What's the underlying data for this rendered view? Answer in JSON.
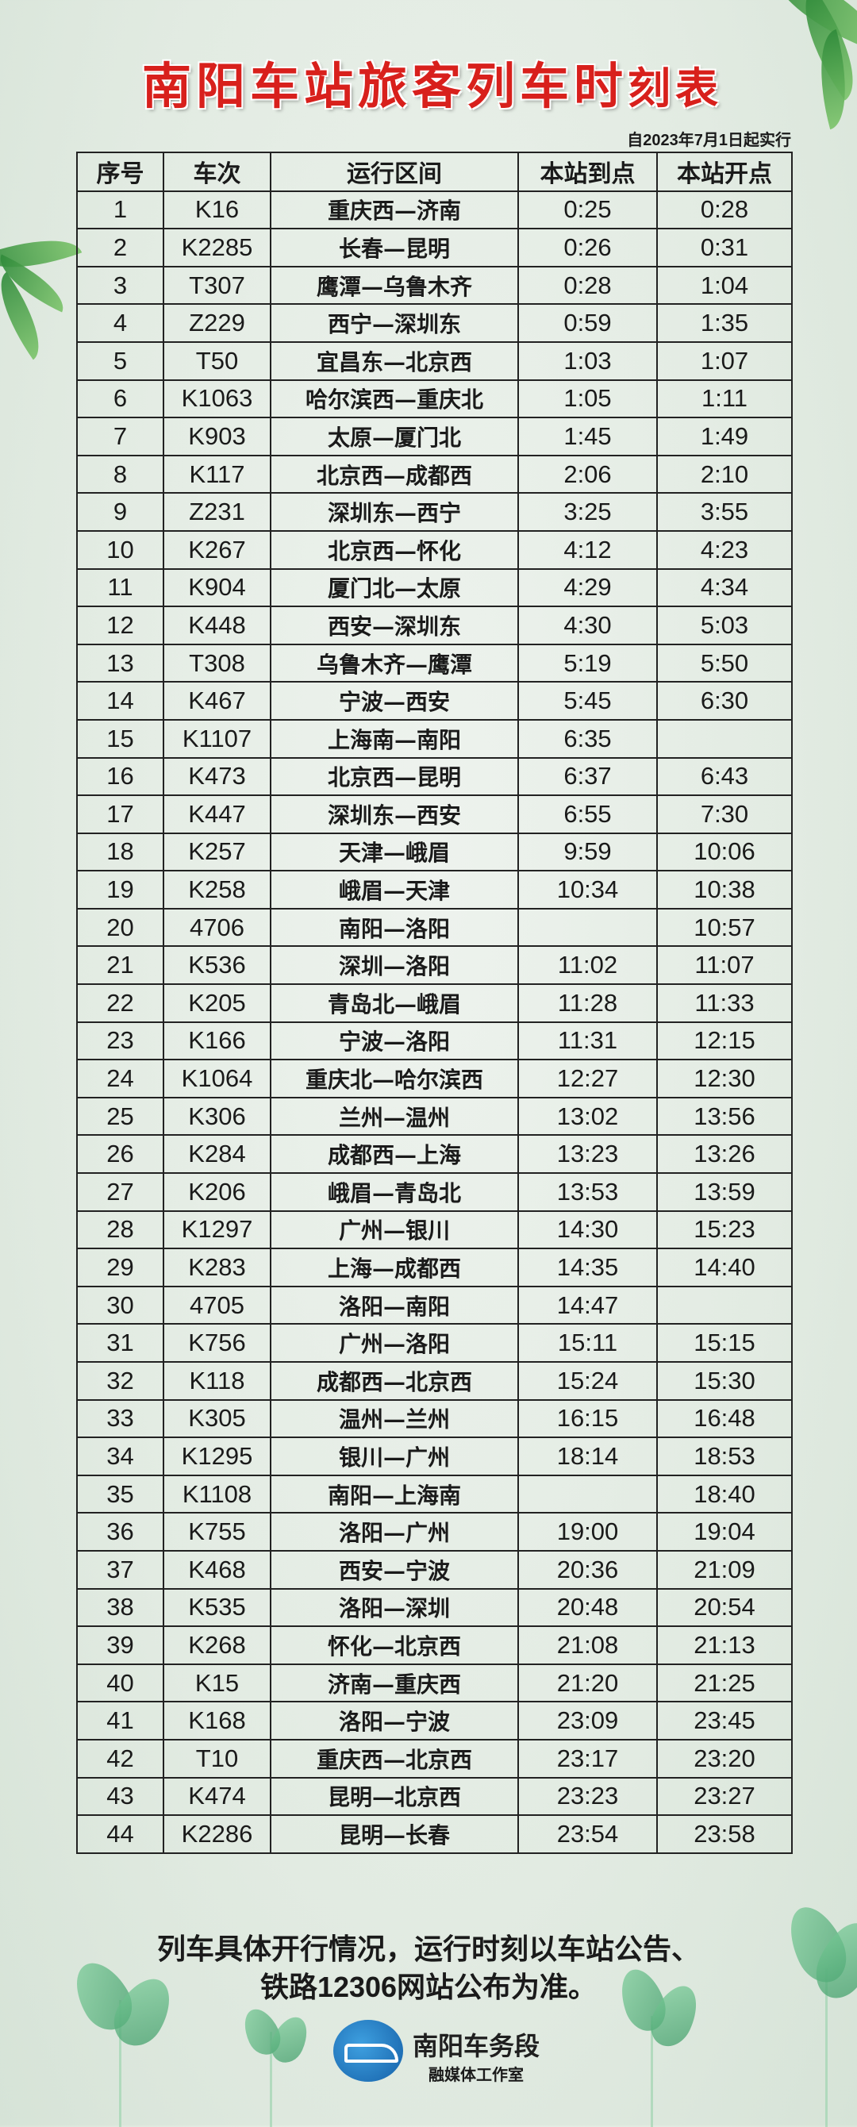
{
  "title_main": "南阳车站旅客列车时",
  "title_tail": "刻表",
  "effective_date": "自2023年7月1日起实行",
  "table": {
    "headers": [
      "序号",
      "车次",
      "运行区间",
      "本站到点",
      "本站开点"
    ],
    "rows": [
      [
        "1",
        "K16",
        "重庆西—济南",
        "0:25",
        "0:28"
      ],
      [
        "2",
        "K2285",
        "长春—昆明",
        "0:26",
        "0:31"
      ],
      [
        "3",
        "T307",
        "鹰潭—乌鲁木齐",
        "0:28",
        "1:04"
      ],
      [
        "4",
        "Z229",
        "西宁—深圳东",
        "0:59",
        "1:35"
      ],
      [
        "5",
        "T50",
        "宜昌东—北京西",
        "1:03",
        "1:07"
      ],
      [
        "6",
        "K1063",
        "哈尔滨西—重庆北",
        "1:05",
        "1:11"
      ],
      [
        "7",
        "K903",
        "太原—厦门北",
        "1:45",
        "1:49"
      ],
      [
        "8",
        "K117",
        "北京西—成都西",
        "2:06",
        "2:10"
      ],
      [
        "9",
        "Z231",
        "深圳东—西宁",
        "3:25",
        "3:55"
      ],
      [
        "10",
        "K267",
        "北京西—怀化",
        "4:12",
        "4:23"
      ],
      [
        "11",
        "K904",
        "厦门北—太原",
        "4:29",
        "4:34"
      ],
      [
        "12",
        "K448",
        "西安—深圳东",
        "4:30",
        "5:03"
      ],
      [
        "13",
        "T308",
        "乌鲁木齐—鹰潭",
        "5:19",
        "5:50"
      ],
      [
        "14",
        "K467",
        "宁波—西安",
        "5:45",
        "6:30"
      ],
      [
        "15",
        "K1107",
        "上海南—南阳",
        "6:35",
        ""
      ],
      [
        "16",
        "K473",
        "北京西—昆明",
        "6:37",
        "6:43"
      ],
      [
        "17",
        "K447",
        "深圳东—西安",
        "6:55",
        "7:30"
      ],
      [
        "18",
        "K257",
        "天津—峨眉",
        "9:59",
        "10:06"
      ],
      [
        "19",
        "K258",
        "峨眉—天津",
        "10:34",
        "10:38"
      ],
      [
        "20",
        "4706",
        "南阳—洛阳",
        "",
        "10:57"
      ],
      [
        "21",
        "K536",
        "深圳—洛阳",
        "11:02",
        "11:07"
      ],
      [
        "22",
        "K205",
        "青岛北—峨眉",
        "11:28",
        "11:33"
      ],
      [
        "23",
        "K166",
        "宁波—洛阳",
        "11:31",
        "12:15"
      ],
      [
        "24",
        "K1064",
        "重庆北—哈尔滨西",
        "12:27",
        "12:30"
      ],
      [
        "25",
        "K306",
        "兰州—温州",
        "13:02",
        "13:56"
      ],
      [
        "26",
        "K284",
        "成都西—上海",
        "13:23",
        "13:26"
      ],
      [
        "27",
        "K206",
        "峨眉—青岛北",
        "13:53",
        "13:59"
      ],
      [
        "28",
        "K1297",
        "广州—银川",
        "14:30",
        "15:23"
      ],
      [
        "29",
        "K283",
        "上海—成都西",
        "14:35",
        "14:40"
      ],
      [
        "30",
        "4705",
        "洛阳—南阳",
        "14:47",
        ""
      ],
      [
        "31",
        "K756",
        "广州—洛阳",
        "15:11",
        "15:15"
      ],
      [
        "32",
        "K118",
        "成都西—北京西",
        "15:24",
        "15:30"
      ],
      [
        "33",
        "K305",
        "温州—兰州",
        "16:15",
        "16:48"
      ],
      [
        "34",
        "K1295",
        "银川—广州",
        "18:14",
        "18:53"
      ],
      [
        "35",
        "K1108",
        "南阳—上海南",
        "",
        "18:40"
      ],
      [
        "36",
        "K755",
        "洛阳—广州",
        "19:00",
        "19:04"
      ],
      [
        "37",
        "K468",
        "西安—宁波",
        "20:36",
        "21:09"
      ],
      [
        "38",
        "K535",
        "洛阳—深圳",
        "20:48",
        "20:54"
      ],
      [
        "39",
        "K268",
        "怀化—北京西",
        "21:08",
        "21:13"
      ],
      [
        "40",
        "K15",
        "济南—重庆西",
        "21:20",
        "21:25"
      ],
      [
        "41",
        "K168",
        "洛阳—宁波",
        "23:09",
        "23:45"
      ],
      [
        "42",
        "T10",
        "重庆西—北京西",
        "23:17",
        "23:20"
      ],
      [
        "43",
        "K474",
        "昆明—北京西",
        "23:23",
        "23:27"
      ],
      [
        "44",
        "K2286",
        "昆明—长春",
        "23:54",
        "23:58"
      ]
    ]
  },
  "notice": {
    "line1": "列车具体开行情况，运行时刻以车站公告、",
    "line2": "铁路12306网站公布为准。"
  },
  "footer": {
    "logo_icon": "railway-logo-icon",
    "org_name": "南阳车务段",
    "studio": "融媒体工作室"
  },
  "colors": {
    "title": "#d8201c",
    "background": "#e4ece4",
    "logo": "#1f6fb8"
  }
}
